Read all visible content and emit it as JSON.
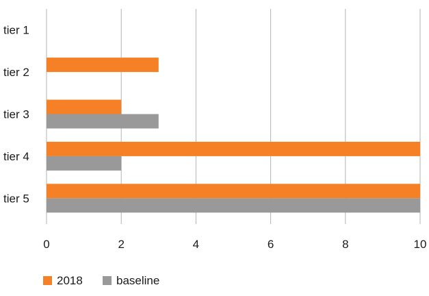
{
  "chart_data": {
    "type": "bar",
    "orientation": "horizontal",
    "title": "",
    "xlabel": "",
    "ylabel": "",
    "categories": [
      "tier 1",
      "tier 2",
      "tier 3",
      "tier 4",
      "tier 5"
    ],
    "series": [
      {
        "name": "2018",
        "color": "#f58025",
        "values": [
          0,
          3,
          2,
          10,
          10
        ]
      },
      {
        "name": "baseline",
        "color": "#999999",
        "values": [
          0,
          0,
          3,
          2,
          10
        ]
      }
    ],
    "xlim": [
      0,
      10
    ],
    "xticks": [
      0,
      2,
      4,
      6,
      8,
      10
    ],
    "grid": true,
    "legend_position": "bottom-left"
  }
}
